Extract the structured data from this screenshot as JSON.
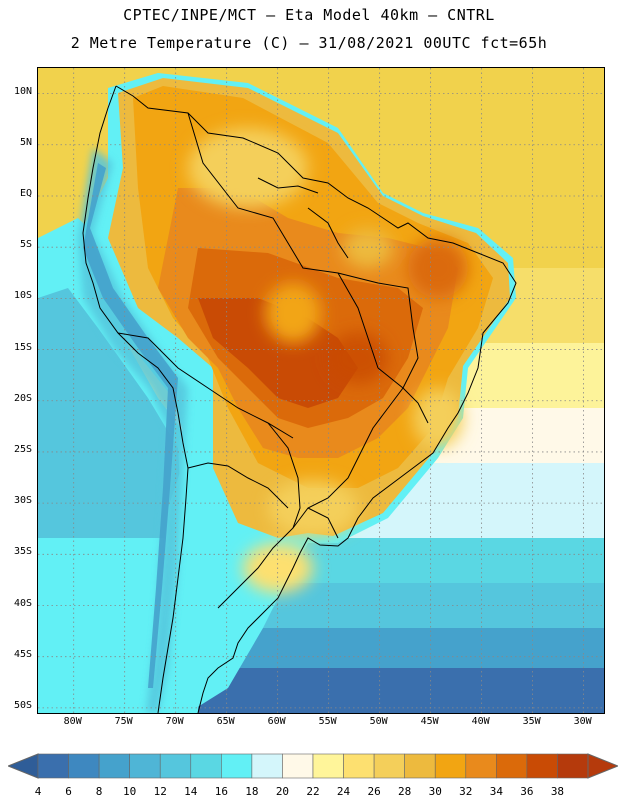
{
  "title": {
    "line1": "CPTEC/INPE/MCT –  Eta Model 40km – CNTRL",
    "line2": "2 Metre Temperature (C) – 31/08/2021 00UTC fct=65h"
  },
  "map": {
    "lat_labels": [
      "10N",
      "5N",
      "EQ",
      "5S",
      "10S",
      "15S",
      "20S",
      "25S",
      "30S",
      "35S",
      "40S",
      "45S",
      "50S"
    ],
    "lat_values": [
      10,
      5,
      0,
      -5,
      -10,
      -15,
      -20,
      -25,
      -30,
      -35,
      -40,
      -45,
      -50
    ],
    "lon_labels": [
      "80W",
      "75W",
      "70W",
      "65W",
      "60W",
      "55W",
      "50W",
      "45W",
      "40W",
      "35W",
      "30W"
    ],
    "lon_values": [
      -80,
      -75,
      -70,
      -65,
      -60,
      -55,
      -50,
      -45,
      -40,
      -35,
      -30
    ],
    "lat_range": [
      -50.5,
      12.5
    ],
    "lon_range": [
      -83.5,
      -28.0
    ]
  },
  "colorbar": {
    "labels": [
      "4",
      "6",
      "8",
      "10",
      "12",
      "14",
      "16",
      "18",
      "20",
      "22",
      "24",
      "26",
      "28",
      "30",
      "32",
      "34",
      "36",
      "38"
    ],
    "colors": [
      "#3a6fad",
      "#3e88c0",
      "#45a2cc",
      "#4fb5d6",
      "#55c6dd",
      "#5ad7e3",
      "#62f0f5",
      "#d4f6fb",
      "#fff9e8",
      "#fff59a",
      "#fde070",
      "#f4cf5a",
      "#edba3e",
      "#f2a512",
      "#e98a1c",
      "#db6a0a",
      "#c94b05",
      "#b53a0c"
    ]
  }
}
